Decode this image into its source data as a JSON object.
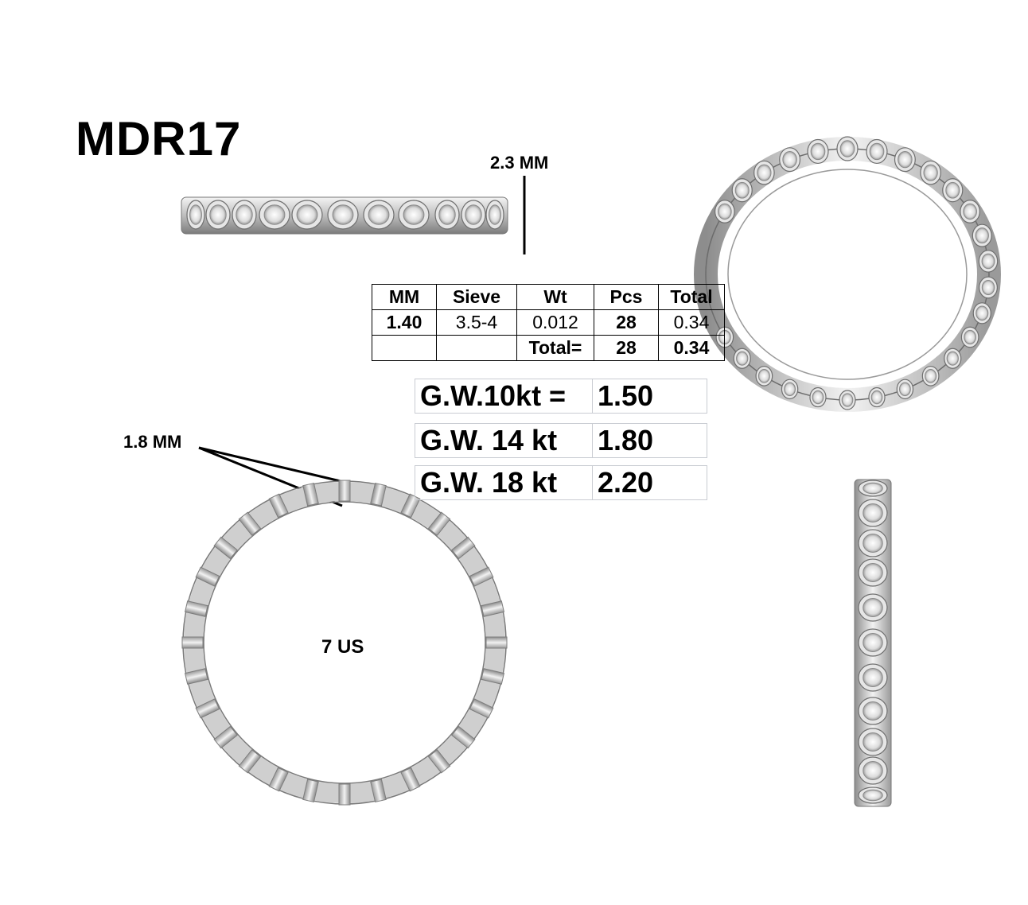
{
  "title": "MDR17",
  "dimensions": {
    "width": "2.3 MM",
    "thickness": "1.8 MM",
    "ring_size": "7 US"
  },
  "stone_table": {
    "headers": [
      "MM",
      "Sieve",
      "Wt",
      "Pcs",
      "Total"
    ],
    "row": {
      "mm": "1.40",
      "sieve": "3.5-4",
      "wt": "0.012",
      "pcs": "28",
      "total": "0.34"
    },
    "summary": {
      "label": "Total=",
      "pcs": "28",
      "total": "0.34"
    }
  },
  "gold_weights": [
    {
      "label": "G.W.10kt =",
      "value": "1.50"
    },
    {
      "label": "G.W. 14 kt",
      "value": "1.80"
    },
    {
      "label": "G.W. 18 kt",
      "value": "2.20"
    }
  ],
  "colors": {
    "metal": "#d9d9d9",
    "metal_dark": "#8a8a8a",
    "text": "#000000"
  }
}
